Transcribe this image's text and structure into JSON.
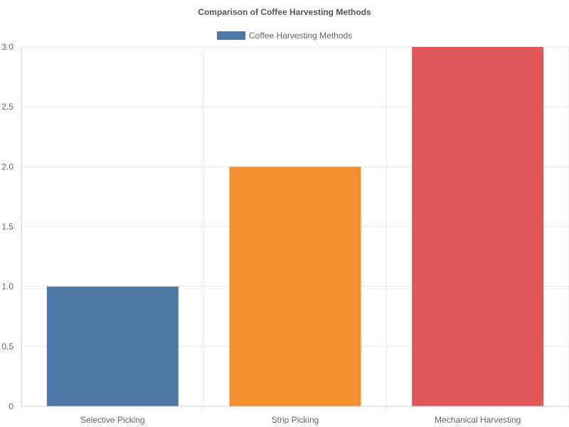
{
  "chart_data": {
    "type": "bar",
    "title": "Comparison of Coffee Harvesting Methods",
    "categories": [
      "Selective Picking",
      "Strip Picking",
      "Mechanical Harvesting"
    ],
    "series": [
      {
        "name": "Coffee Harvesting Methods",
        "values": [
          1,
          2,
          3
        ]
      }
    ],
    "bar_colors": [
      "#4e79a7",
      "#f28e2b",
      "#e15759"
    ],
    "legend_color": "#4e79a7",
    "ylim": [
      0,
      3
    ],
    "y_ticks": [
      "0",
      "0.5",
      "1.0",
      "1.5",
      "2.0",
      "2.5",
      "3.0"
    ],
    "grid": true,
    "legend_position": "top"
  }
}
